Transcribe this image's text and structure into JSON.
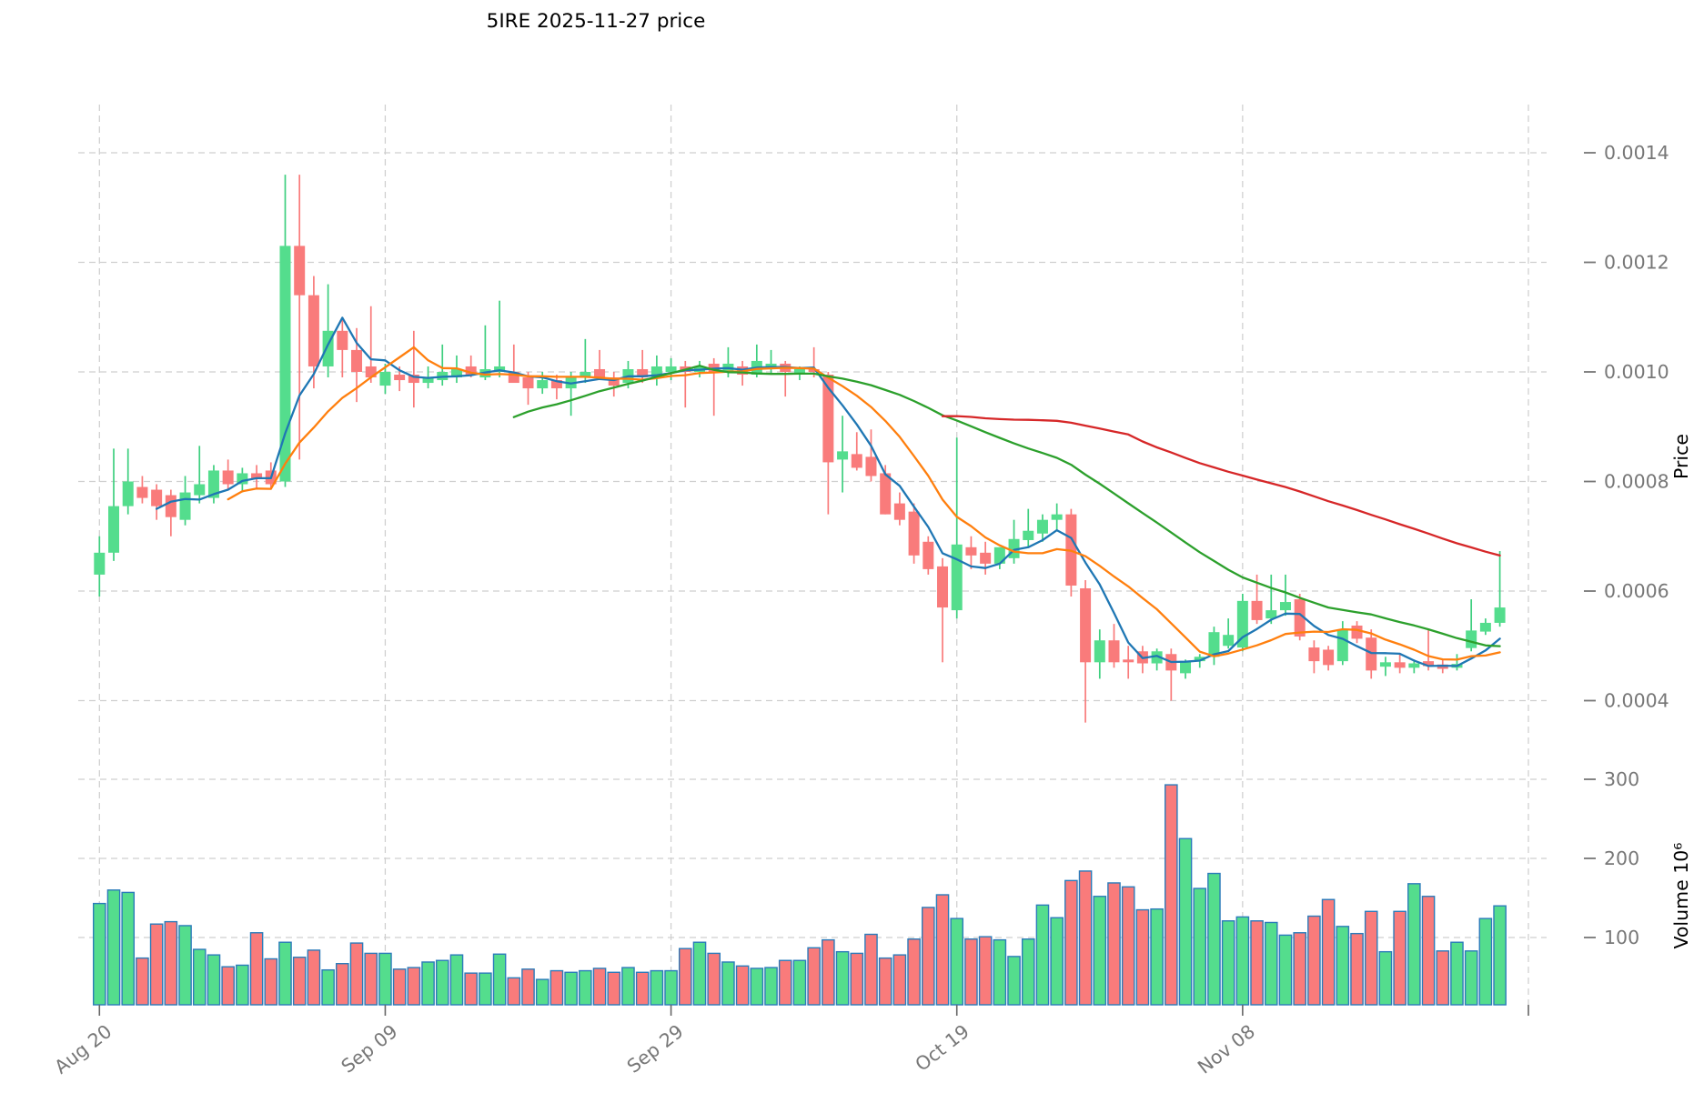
{
  "title": "5IRE  2025-11-27  price",
  "chart_data": {
    "type": "candlestick",
    "title": "5IRE  2025-11-27  price",
    "start_date": "2025-08-20",
    "price_scale": 0.0001,
    "volume_scale": 1000000,
    "price_axis": {
      "label": "Price",
      "tick_labels": [
        "0.0004",
        "0.0006",
        "0.0008",
        "0.0010",
        "0.0012",
        "0.0014"
      ],
      "tick_values": [
        4,
        6,
        8,
        10,
        12,
        14
      ],
      "range": [
        3.1,
        14.9
      ]
    },
    "volume_axis": {
      "label": "Volume  10⁶",
      "tick_labels": [
        "100",
        "200",
        "300"
      ],
      "tick_values": [
        100,
        200,
        300
      ],
      "range": [
        15,
        325
      ]
    },
    "x_axis": {
      "tick_labels": [
        "Aug 20",
        "Sep 09",
        "Sep 29",
        "Oct 19",
        "Nov 08"
      ],
      "tick_indices": [
        0,
        20,
        40,
        60,
        80
      ],
      "gridline_indices": [
        0,
        20,
        40,
        60,
        80,
        100
      ]
    },
    "moving_averages": [
      {
        "name": "SMA5",
        "window": 5
      },
      {
        "name": "SMA10",
        "window": 10
      },
      {
        "name": "SMA30",
        "window": 30
      },
      {
        "name": "SMA60",
        "window": 60
      }
    ],
    "grid": true,
    "legend_position": "none",
    "candles_ohlcv": [
      [
        6.3,
        7.0,
        5.9,
        6.7,
        143
      ],
      [
        6.7,
        8.6,
        6.55,
        7.55,
        160
      ],
      [
        7.55,
        8.6,
        7.4,
        8.0,
        157
      ],
      [
        7.9,
        8.1,
        7.6,
        7.7,
        74
      ],
      [
        7.85,
        7.95,
        7.3,
        7.55,
        117
      ],
      [
        7.75,
        7.85,
        7.0,
        7.35,
        120
      ],
      [
        7.3,
        8.1,
        7.2,
        7.8,
        115
      ],
      [
        7.75,
        8.65,
        7.6,
        7.95,
        85
      ],
      [
        7.7,
        8.3,
        7.6,
        8.2,
        78
      ],
      [
        8.2,
        8.4,
        7.85,
        7.95,
        63
      ],
      [
        7.95,
        8.25,
        7.8,
        8.15,
        65
      ],
      [
        8.15,
        8.3,
        7.85,
        8.05,
        106
      ],
      [
        8.2,
        8.35,
        7.85,
        7.95,
        73
      ],
      [
        8.0,
        13.6,
        7.9,
        12.3,
        94
      ],
      [
        12.3,
        13.6,
        8.4,
        11.4,
        75
      ],
      [
        11.4,
        11.75,
        9.7,
        10.1,
        84
      ],
      [
        10.1,
        11.6,
        9.9,
        10.75,
        59
      ],
      [
        10.75,
        11.0,
        9.9,
        10.4,
        67
      ],
      [
        10.4,
        10.8,
        9.45,
        10.0,
        93
      ],
      [
        10.1,
        11.2,
        9.8,
        9.9,
        80
      ],
      [
        9.75,
        10.15,
        9.6,
        10.0,
        80
      ],
      [
        9.95,
        10.1,
        9.65,
        9.85,
        60
      ],
      [
        9.95,
        10.75,
        9.35,
        9.8,
        62
      ],
      [
        9.8,
        10.1,
        9.7,
        9.9,
        69
      ],
      [
        9.85,
        10.5,
        9.75,
        10.0,
        71
      ],
      [
        9.9,
        10.3,
        9.8,
        10.05,
        78
      ],
      [
        10.1,
        10.3,
        9.9,
        9.95,
        55
      ],
      [
        9.9,
        10.85,
        9.85,
        10.05,
        55
      ],
      [
        10.0,
        11.3,
        9.9,
        10.1,
        79
      ],
      [
        10.0,
        10.5,
        9.85,
        9.8,
        49
      ],
      [
        9.9,
        10.0,
        9.4,
        9.7,
        60
      ],
      [
        9.7,
        10.0,
        9.6,
        9.85,
        47
      ],
      [
        9.85,
        9.95,
        9.5,
        9.7,
        58
      ],
      [
        9.7,
        10.0,
        9.2,
        9.9,
        56
      ],
      [
        9.9,
        10.6,
        9.8,
        10.0,
        58
      ],
      [
        10.05,
        10.4,
        9.85,
        9.9,
        61
      ],
      [
        9.9,
        10.0,
        9.55,
        9.75,
        56
      ],
      [
        9.8,
        10.2,
        9.7,
        10.05,
        62
      ],
      [
        10.05,
        10.4,
        9.8,
        9.9,
        56
      ],
      [
        9.9,
        10.3,
        9.75,
        10.1,
        58
      ],
      [
        10.0,
        10.25,
        9.85,
        10.1,
        58
      ],
      [
        10.1,
        10.2,
        9.35,
        10.0,
        86
      ],
      [
        10.0,
        10.2,
        9.9,
        10.1,
        94
      ],
      [
        10.15,
        10.25,
        9.2,
        10.0,
        80
      ],
      [
        10.0,
        10.45,
        9.9,
        10.15,
        69
      ],
      [
        10.1,
        10.2,
        9.75,
        9.95,
        64
      ],
      [
        9.95,
        10.5,
        9.9,
        10.2,
        61
      ],
      [
        10.05,
        10.4,
        9.95,
        10.15,
        62
      ],
      [
        10.15,
        10.2,
        9.55,
        10.0,
        71
      ],
      [
        9.95,
        10.1,
        9.85,
        10.05,
        71
      ],
      [
        10.05,
        10.45,
        9.9,
        10.0,
        87
      ],
      [
        9.95,
        10.0,
        7.4,
        8.35,
        97
      ],
      [
        8.4,
        9.2,
        7.8,
        8.55,
        82
      ],
      [
        8.5,
        8.9,
        8.2,
        8.25,
        80
      ],
      [
        8.45,
        8.95,
        8.0,
        8.1,
        104
      ],
      [
        8.15,
        8.3,
        7.4,
        7.4,
        74
      ],
      [
        7.6,
        7.8,
        7.2,
        7.3,
        78
      ],
      [
        7.45,
        7.6,
        6.5,
        6.65,
        98
      ],
      [
        6.9,
        7.0,
        6.3,
        6.4,
        138
      ],
      [
        6.45,
        6.6,
        4.7,
        5.7,
        154
      ],
      [
        5.65,
        8.8,
        5.5,
        6.85,
        124
      ],
      [
        6.8,
        7.0,
        6.4,
        6.65,
        98
      ],
      [
        6.7,
        6.9,
        6.3,
        6.5,
        101
      ],
      [
        6.5,
        6.8,
        6.4,
        6.8,
        97
      ],
      [
        6.6,
        7.3,
        6.5,
        6.95,
        76
      ],
      [
        6.93,
        7.5,
        6.8,
        7.1,
        98
      ],
      [
        7.05,
        7.4,
        6.9,
        7.3,
        141
      ],
      [
        7.3,
        7.6,
        7.1,
        7.4,
        125
      ],
      [
        7.4,
        7.5,
        5.9,
        6.1,
        172
      ],
      [
        6.05,
        6.2,
        3.6,
        4.7,
        184
      ],
      [
        4.7,
        5.3,
        4.4,
        5.1,
        152
      ],
      [
        5.1,
        5.4,
        4.6,
        4.7,
        169
      ],
      [
        4.75,
        5.0,
        4.4,
        4.7,
        164
      ],
      [
        4.9,
        5.0,
        4.5,
        4.68,
        135
      ],
      [
        4.68,
        4.95,
        4.55,
        4.9,
        136
      ],
      [
        4.85,
        4.95,
        4.0,
        4.55,
        293
      ],
      [
        4.5,
        4.75,
        4.4,
        4.72,
        225
      ],
      [
        4.72,
        4.85,
        4.6,
        4.8,
        162
      ],
      [
        4.8,
        5.35,
        4.65,
        5.25,
        181
      ],
      [
        5.0,
        5.5,
        4.95,
        5.2,
        121
      ],
      [
        4.97,
        5.95,
        4.9,
        5.82,
        126
      ],
      [
        5.82,
        6.3,
        5.4,
        5.47,
        121
      ],
      [
        5.5,
        6.3,
        5.4,
        5.65,
        119
      ],
      [
        5.65,
        6.3,
        5.55,
        5.8,
        103
      ],
      [
        5.85,
        5.95,
        5.1,
        5.17,
        106
      ],
      [
        4.97,
        5.1,
        4.5,
        4.72,
        127
      ],
      [
        4.93,
        5.0,
        4.55,
        4.65,
        148
      ],
      [
        4.72,
        5.45,
        4.65,
        5.3,
        114
      ],
      [
        5.37,
        5.45,
        5.05,
        5.13,
        105
      ],
      [
        5.15,
        5.3,
        4.4,
        4.55,
        133
      ],
      [
        4.62,
        4.8,
        4.45,
        4.7,
        82
      ],
      [
        4.7,
        4.85,
        4.5,
        4.6,
        133
      ],
      [
        4.6,
        4.75,
        4.5,
        4.68,
        168
      ],
      [
        4.72,
        5.3,
        4.55,
        4.63,
        152
      ],
      [
        4.66,
        4.75,
        4.5,
        4.58,
        83
      ],
      [
        4.6,
        4.85,
        4.55,
        4.67,
        94
      ],
      [
        4.96,
        5.85,
        4.9,
        5.28,
        83
      ],
      [
        5.26,
        5.5,
        5.2,
        5.42,
        124
      ],
      [
        5.42,
        6.73,
        5.35,
        5.7,
        140
      ]
    ]
  },
  "colors": {
    "up": "#54dd8d",
    "down": "#f97b7b",
    "up_wick": "#3ecf7f",
    "down_wick": "#f97b7b",
    "volume_edge": "#2b7bba",
    "grid": "#cfcfcf",
    "tick_text": "#777777",
    "tick_mark": "#666666",
    "axis_text": "#000000",
    "background": "#ffffff",
    "ma": [
      "#1f77b4",
      "#ff7f0e",
      "#2ca02c",
      "#d62728"
    ]
  }
}
